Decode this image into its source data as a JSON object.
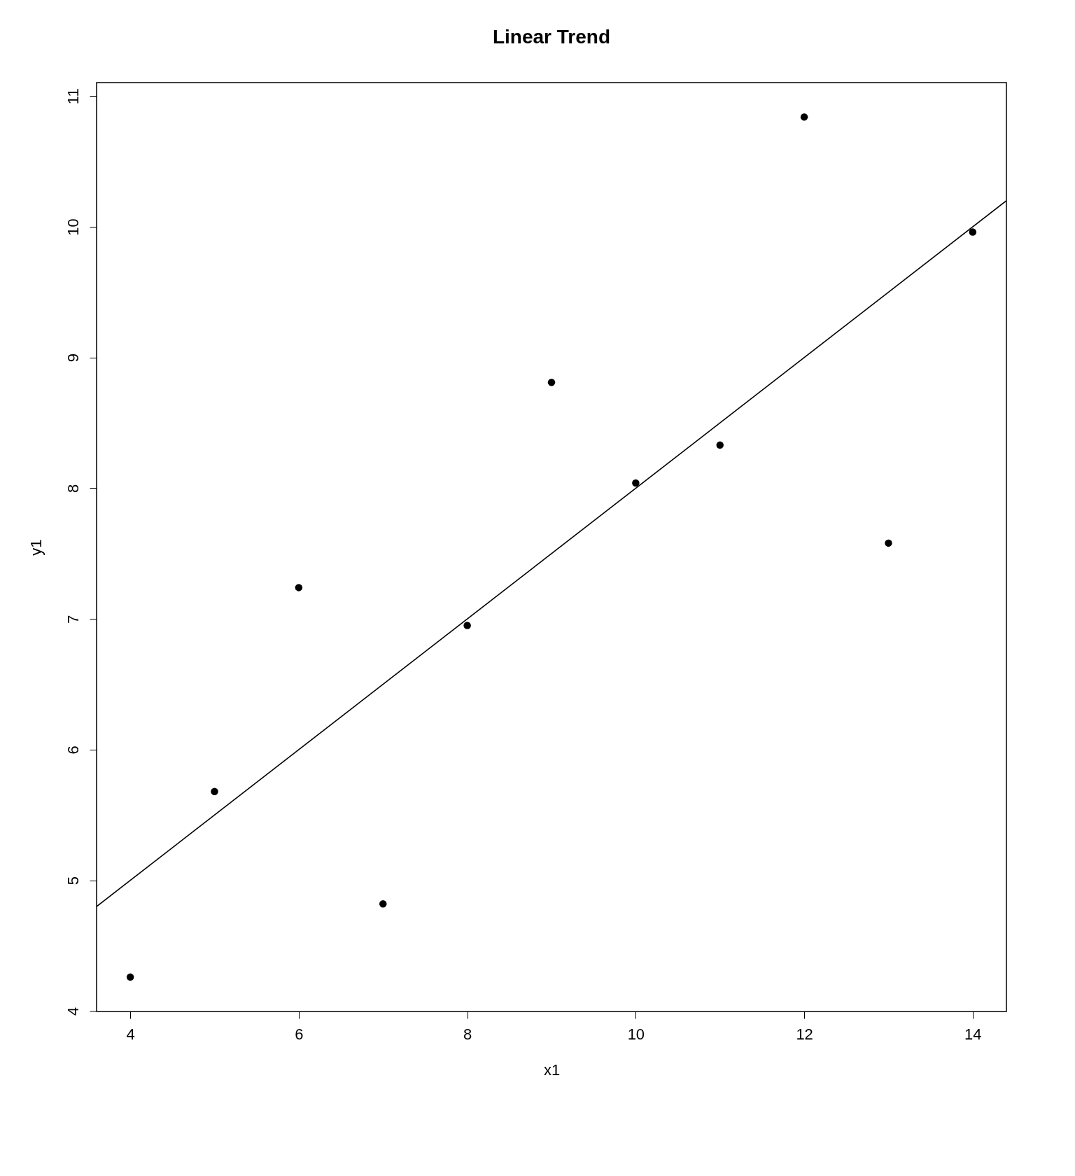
{
  "chart_data": {
    "type": "scatter",
    "title": "Linear Trend",
    "xlabel": "x1",
    "ylabel": "y1",
    "xlim": [
      3.6,
      14.4
    ],
    "ylim": [
      3.9968,
      11.1032
    ],
    "xticks": [
      4,
      6,
      8,
      10,
      12,
      14
    ],
    "yticks": [
      4,
      5,
      6,
      7,
      8,
      9,
      10,
      11
    ],
    "grid": false,
    "series": [
      {
        "color": "#000000",
        "marker": "circle",
        "x": [
          10,
          8,
          13,
          9,
          11,
          14,
          6,
          4,
          12,
          7,
          5
        ],
        "values": [
          8.04,
          6.95,
          7.58,
          8.81,
          8.33,
          9.96,
          7.24,
          4.26,
          10.84,
          4.82,
          5.68
        ]
      },
      {
        "type": "line",
        "color": "#000000",
        "line_style": "solid",
        "x": [
          3.6,
          14.4
        ],
        "values": [
          4.8,
          10.2
        ]
      }
    ]
  }
}
